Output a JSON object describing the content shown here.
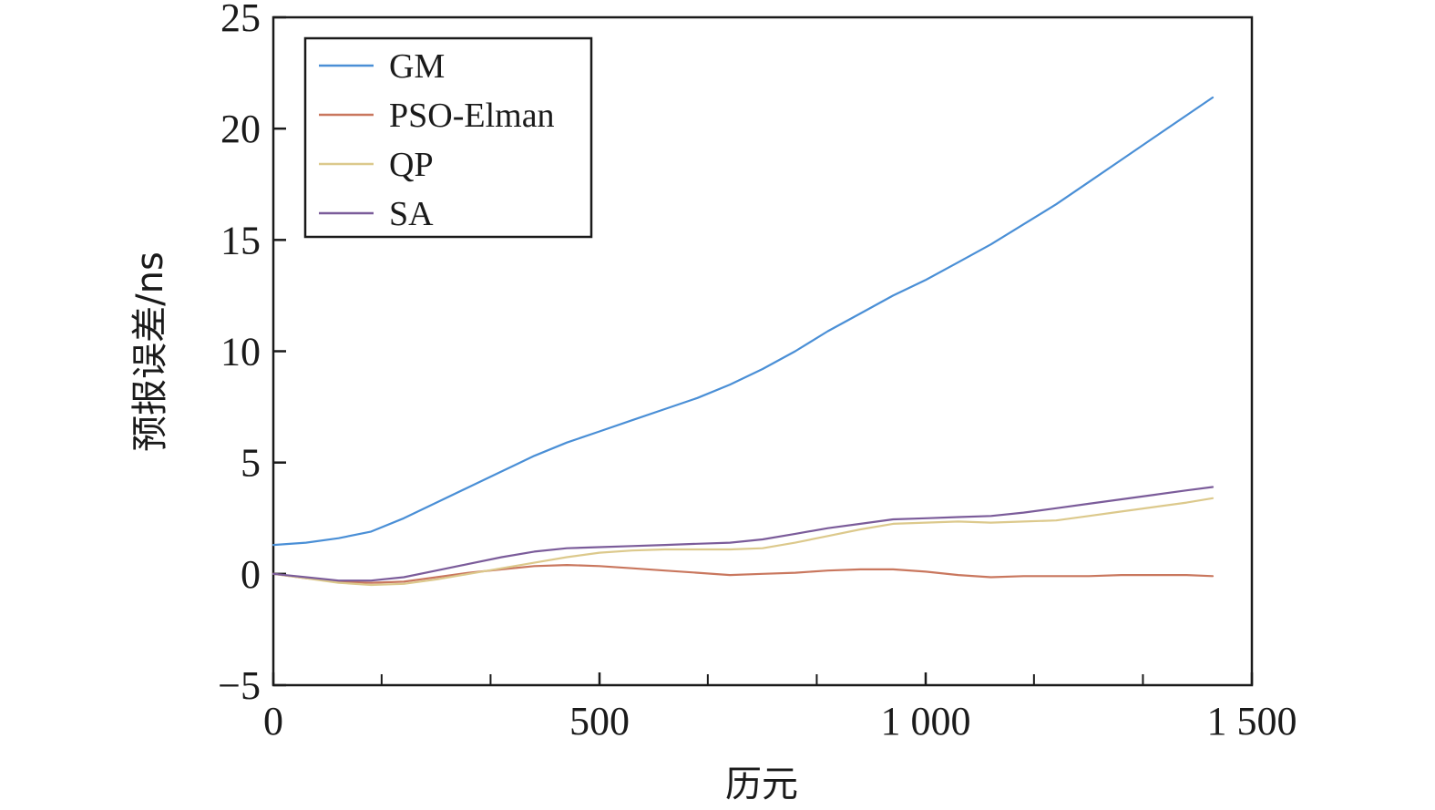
{
  "chart_data": {
    "type": "line",
    "title": "",
    "xlabel": "历元",
    "ylabel": "预报误差/ns",
    "xlim": [
      0,
      1500
    ],
    "ylim": [
      -5,
      25
    ],
    "x_ticks": [
      0,
      500,
      1000,
      1500
    ],
    "x_tick_labels": [
      "0",
      "500",
      "1 000",
      "1 500"
    ],
    "x_minor_ticks": [
      166,
      333,
      666,
      833,
      1166,
      1333
    ],
    "y_ticks": [
      -5,
      0,
      5,
      10,
      15,
      20,
      25
    ],
    "y_tick_labels": [
      "−5",
      "0",
      "5",
      "10",
      "15",
      "20",
      "25"
    ],
    "grid": false,
    "legend_position": "top-left",
    "series": [
      {
        "name": "GM",
        "color": "#4a8fd6",
        "points": [
          [
            0,
            1.3
          ],
          [
            50,
            1.4
          ],
          [
            100,
            1.6
          ],
          [
            150,
            1.9
          ],
          [
            200,
            2.5
          ],
          [
            250,
            3.2
          ],
          [
            300,
            3.9
          ],
          [
            350,
            4.6
          ],
          [
            400,
            5.3
          ],
          [
            450,
            5.9
          ],
          [
            500,
            6.4
          ],
          [
            550,
            6.9
          ],
          [
            600,
            7.4
          ],
          [
            650,
            7.9
          ],
          [
            700,
            8.5
          ],
          [
            750,
            9.2
          ],
          [
            800,
            10.0
          ],
          [
            850,
            10.9
          ],
          [
            900,
            11.7
          ],
          [
            950,
            12.5
          ],
          [
            1000,
            13.2
          ],
          [
            1050,
            14.0
          ],
          [
            1100,
            14.8
          ],
          [
            1150,
            15.7
          ],
          [
            1200,
            16.6
          ],
          [
            1250,
            17.6
          ],
          [
            1300,
            18.6
          ],
          [
            1350,
            19.6
          ],
          [
            1400,
            20.6
          ],
          [
            1440,
            21.4
          ]
        ]
      },
      {
        "name": "PSO-Elman",
        "color": "#c9775e",
        "points": [
          [
            0,
            0.0
          ],
          [
            50,
            -0.2
          ],
          [
            100,
            -0.35
          ],
          [
            150,
            -0.4
          ],
          [
            200,
            -0.35
          ],
          [
            250,
            -0.15
          ],
          [
            300,
            0.05
          ],
          [
            350,
            0.2
          ],
          [
            400,
            0.35
          ],
          [
            450,
            0.4
          ],
          [
            500,
            0.35
          ],
          [
            550,
            0.25
          ],
          [
            600,
            0.15
          ],
          [
            650,
            0.05
          ],
          [
            700,
            -0.05
          ],
          [
            750,
            0.0
          ],
          [
            800,
            0.05
          ],
          [
            850,
            0.15
          ],
          [
            900,
            0.2
          ],
          [
            950,
            0.2
          ],
          [
            1000,
            0.1
          ],
          [
            1050,
            -0.05
          ],
          [
            1100,
            -0.15
          ],
          [
            1150,
            -0.1
          ],
          [
            1200,
            -0.1
          ],
          [
            1250,
            -0.1
          ],
          [
            1300,
            -0.05
          ],
          [
            1350,
            -0.05
          ],
          [
            1400,
            -0.05
          ],
          [
            1440,
            -0.1
          ]
        ]
      },
      {
        "name": "QP",
        "color": "#dcc98c",
        "points": [
          [
            0,
            0.0
          ],
          [
            50,
            -0.2
          ],
          [
            100,
            -0.4
          ],
          [
            150,
            -0.5
          ],
          [
            200,
            -0.45
          ],
          [
            250,
            -0.25
          ],
          [
            300,
            0.0
          ],
          [
            350,
            0.25
          ],
          [
            400,
            0.5
          ],
          [
            450,
            0.75
          ],
          [
            500,
            0.95
          ],
          [
            550,
            1.05
          ],
          [
            600,
            1.1
          ],
          [
            650,
            1.1
          ],
          [
            700,
            1.1
          ],
          [
            750,
            1.15
          ],
          [
            800,
            1.4
          ],
          [
            850,
            1.7
          ],
          [
            900,
            2.0
          ],
          [
            950,
            2.25
          ],
          [
            1000,
            2.3
          ],
          [
            1050,
            2.35
          ],
          [
            1100,
            2.3
          ],
          [
            1150,
            2.35
          ],
          [
            1200,
            2.4
          ],
          [
            1250,
            2.6
          ],
          [
            1300,
            2.8
          ],
          [
            1350,
            3.0
          ],
          [
            1400,
            3.2
          ],
          [
            1440,
            3.4
          ]
        ]
      },
      {
        "name": "SA",
        "color": "#7b5c9a",
        "points": [
          [
            0,
            0.0
          ],
          [
            50,
            -0.15
          ],
          [
            100,
            -0.3
          ],
          [
            150,
            -0.3
          ],
          [
            200,
            -0.15
          ],
          [
            250,
            0.15
          ],
          [
            300,
            0.45
          ],
          [
            350,
            0.75
          ],
          [
            400,
            1.0
          ],
          [
            450,
            1.15
          ],
          [
            500,
            1.2
          ],
          [
            550,
            1.25
          ],
          [
            600,
            1.3
          ],
          [
            650,
            1.35
          ],
          [
            700,
            1.4
          ],
          [
            750,
            1.55
          ],
          [
            800,
            1.8
          ],
          [
            850,
            2.05
          ],
          [
            900,
            2.25
          ],
          [
            950,
            2.45
          ],
          [
            1000,
            2.5
          ],
          [
            1050,
            2.55
          ],
          [
            1100,
            2.6
          ],
          [
            1150,
            2.75
          ],
          [
            1200,
            2.95
          ],
          [
            1250,
            3.15
          ],
          [
            1300,
            3.35
          ],
          [
            1350,
            3.55
          ],
          [
            1400,
            3.75
          ],
          [
            1440,
            3.9
          ]
        ]
      }
    ]
  }
}
